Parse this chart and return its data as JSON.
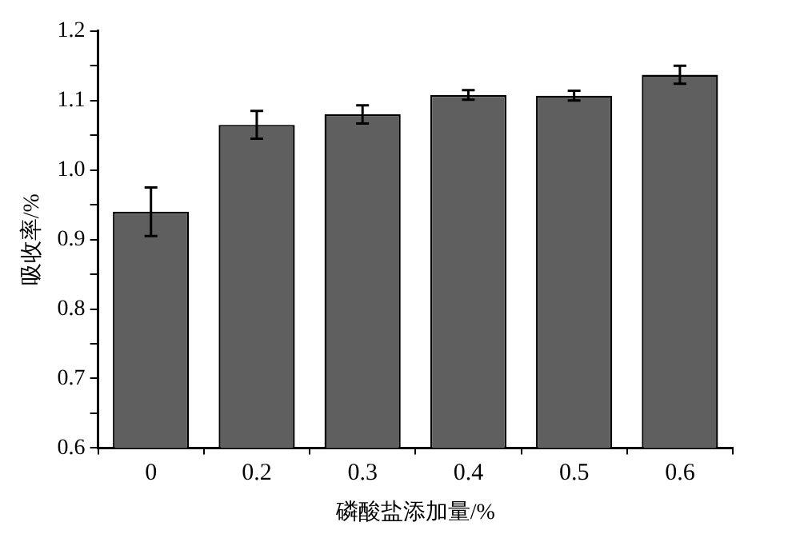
{
  "chart_data": {
    "type": "bar",
    "xlabel": "磷酸盐添加量/%",
    "ylabel": "吸收率/%",
    "categories": [
      "0",
      "0.2",
      "0.3",
      "0.4",
      "0.5",
      "0.6"
    ],
    "values": [
      0.94,
      1.065,
      1.08,
      1.108,
      1.107,
      1.137
    ],
    "errors": [
      0.035,
      0.02,
      0.013,
      0.007,
      0.007,
      0.013
    ],
    "color": "#5f5f5f",
    "ylim": [
      0.6,
      1.2
    ],
    "yticks": [
      0.6,
      {
        "value": 0.65,
        "label": null
      },
      0.7,
      {
        "value": 0.75,
        "label": null
      },
      0.8,
      {
        "value": 0.85,
        "label": null
      },
      0.9,
      {
        "value": 0.95,
        "label": null
      },
      {
        "value": 1,
        "label": "1.0"
      },
      {
        "value": 1.05,
        "label": null
      },
      1.1,
      {
        "value": 1.15,
        "label": null
      },
      1.2
    ],
    "grid": false,
    "legend": false
  }
}
